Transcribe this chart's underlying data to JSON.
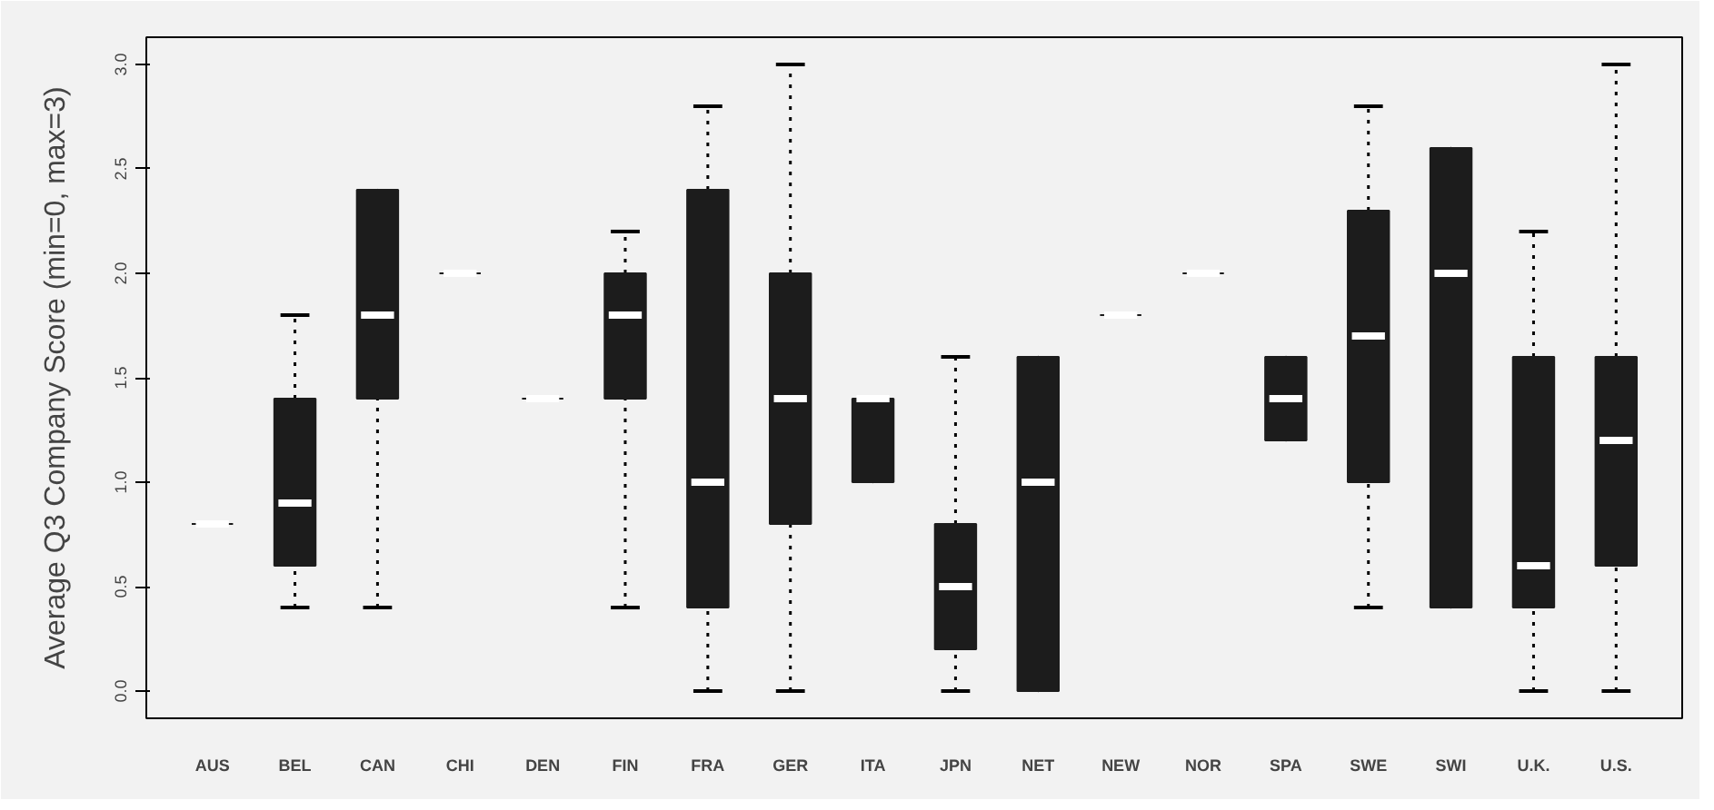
{
  "chart_data": {
    "type": "box",
    "ylabel": "Average Q3 Company Score (min=0, max=3)",
    "categories": [
      "AUS",
      "BEL",
      "CAN",
      "CHI",
      "DEN",
      "FIN",
      "FRA",
      "GER",
      "ITA",
      "JPN",
      "NET",
      "NEW",
      "NOR",
      "SPA",
      "SWE",
      "SWI",
      "U.K.",
      "U.S."
    ],
    "boxes": [
      {
        "low": 0.8,
        "q1": 0.8,
        "median": 0.8,
        "q3": 0.8,
        "high": 0.8
      },
      {
        "low": 0.4,
        "q1": 0.6,
        "median": 0.9,
        "q3": 1.4,
        "high": 1.8
      },
      {
        "low": 0.4,
        "q1": 1.4,
        "median": 1.8,
        "q3": 2.4,
        "high": 2.4
      },
      {
        "low": 2.0,
        "q1": 2.0,
        "median": 2.0,
        "q3": 2.0,
        "high": 2.0
      },
      {
        "low": 1.4,
        "q1": 1.4,
        "median": 1.4,
        "q3": 1.4,
        "high": 1.4
      },
      {
        "low": 0.4,
        "q1": 1.4,
        "median": 1.8,
        "q3": 2.0,
        "high": 2.2
      },
      {
        "low": 0.0,
        "q1": 0.4,
        "median": 1.0,
        "q3": 2.4,
        "high": 2.8
      },
      {
        "low": 0.0,
        "q1": 0.8,
        "median": 1.4,
        "q3": 2.0,
        "high": 3.0
      },
      {
        "low": 1.0,
        "q1": 1.0,
        "median": 1.4,
        "q3": 1.4,
        "high": 1.4
      },
      {
        "low": 0.0,
        "q1": 0.2,
        "median": 0.5,
        "q3": 0.8,
        "high": 1.6
      },
      {
        "low": 0.0,
        "q1": 0.0,
        "median": 1.0,
        "q3": 1.6,
        "high": 1.6
      },
      {
        "low": 1.8,
        "q1": 1.8,
        "median": 1.8,
        "q3": 1.8,
        "high": 1.8
      },
      {
        "low": 2.0,
        "q1": 2.0,
        "median": 2.0,
        "q3": 2.0,
        "high": 2.0
      },
      {
        "low": 1.2,
        "q1": 1.2,
        "median": 1.4,
        "q3": 1.6,
        "high": 1.6
      },
      {
        "low": 0.4,
        "q1": 1.0,
        "median": 1.7,
        "q3": 2.3,
        "high": 2.8
      },
      {
        "low": 0.4,
        "q1": 0.4,
        "median": 2.0,
        "q3": 2.6,
        "high": 2.6
      },
      {
        "low": 0.0,
        "q1": 0.4,
        "median": 0.6,
        "q3": 1.6,
        "high": 2.2
      },
      {
        "low": 0.0,
        "q1": 0.6,
        "median": 1.2,
        "q3": 1.6,
        "high": 3.0
      }
    ],
    "color": "#1c1c1c",
    "ylim": [
      -0.13,
      3.13
    ],
    "yticks": [
      {
        "value": 0,
        "label": "0.0"
      },
      {
        "value": 0.5,
        "label": "0.5"
      },
      {
        "value": 1,
        "label": "1.0"
      },
      {
        "value": 1.5,
        "label": "1.5"
      },
      {
        "value": 2,
        "label": "2.0"
      },
      {
        "value": 2.5,
        "label": "2.5"
      },
      {
        "value": 3,
        "label": "3.0"
      }
    ],
    "grid": false,
    "line_style": "dotted"
  }
}
